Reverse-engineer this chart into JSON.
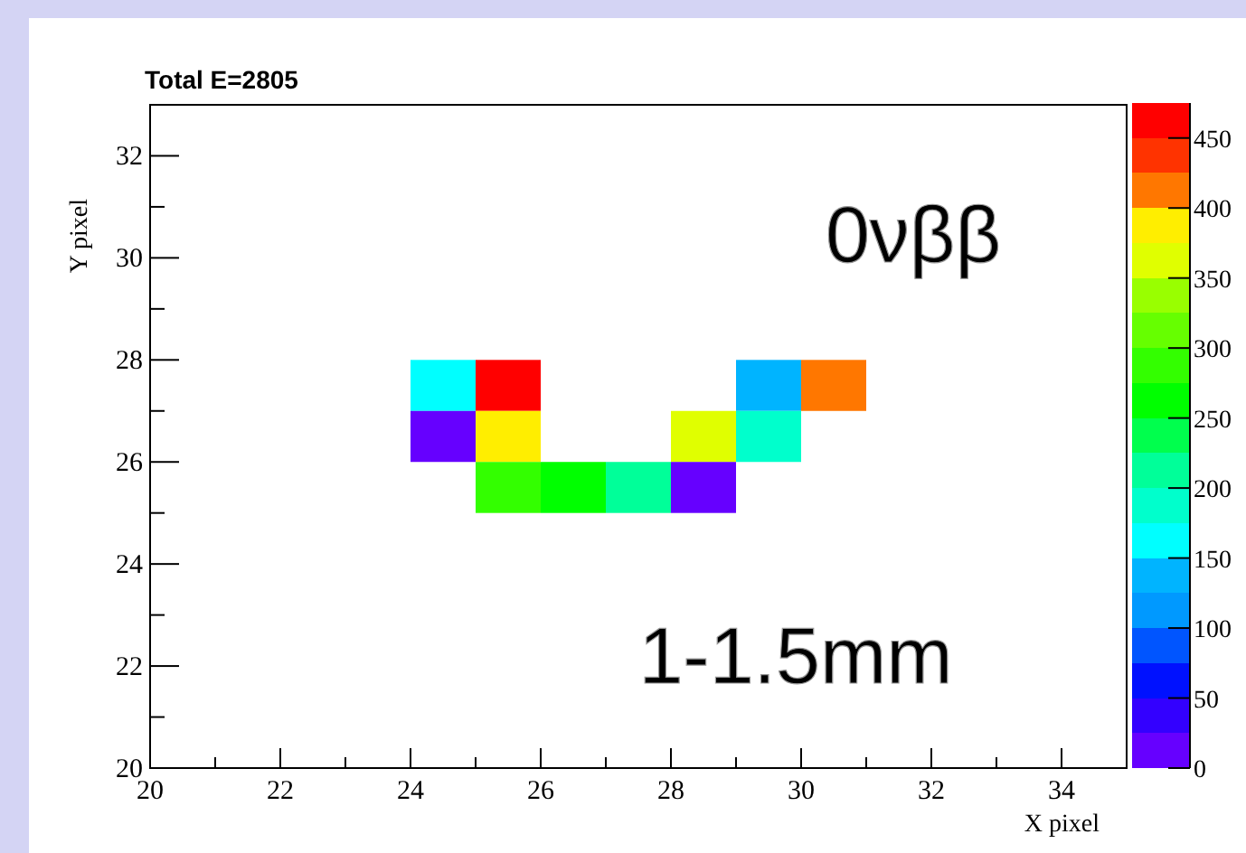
{
  "chart_data": {
    "type": "scatter",
    "title": "Total E=2805",
    "xlabel": "X pixel",
    "ylabel": "Y pixel",
    "annotations": [
      "0νββ",
      "1-1.5mm"
    ],
    "marker": "square",
    "x": [
      24.5,
      25.5,
      29.5,
      30.5,
      24.5,
      25.5,
      28.5,
      29.5,
      25.5,
      26.5,
      27.5,
      28.5
    ],
    "values": [
      27.5,
      27.5,
      27.5,
      27.5,
      26.5,
      26.5,
      26.5,
      26.5,
      25.5,
      25.5,
      25.5,
      25.5
    ],
    "cvalues": [
      152,
      452,
      127,
      403,
      8,
      377,
      350,
      177,
      277,
      252,
      222,
      8
    ],
    "xlim": [
      20,
      35
    ],
    "ylim": [
      20,
      33
    ],
    "xticks": [
      20,
      {
        "value": 21,
        "label": null
      },
      22,
      {
        "value": 23,
        "label": null
      },
      24,
      {
        "value": 25,
        "label": null
      },
      26,
      {
        "value": 27,
        "label": null
      },
      28,
      {
        "value": 29,
        "label": null
      },
      30,
      {
        "value": 31,
        "label": null
      },
      32,
      {
        "value": 33,
        "label": null
      },
      34
    ],
    "yticks": [
      20,
      {
        "value": 21,
        "label": null
      },
      22,
      {
        "value": 23,
        "label": null
      },
      24,
      {
        "value": 25,
        "label": null
      },
      26,
      {
        "value": 27,
        "label": null
      },
      28,
      {
        "value": 29,
        "label": null
      },
      30,
      {
        "value": 31,
        "label": null
      },
      32
    ],
    "clim": [
      0,
      475
    ],
    "cticks": [
      0,
      50,
      100,
      150,
      200,
      250,
      300,
      350,
      400,
      450
    ],
    "grid": false
  }
}
